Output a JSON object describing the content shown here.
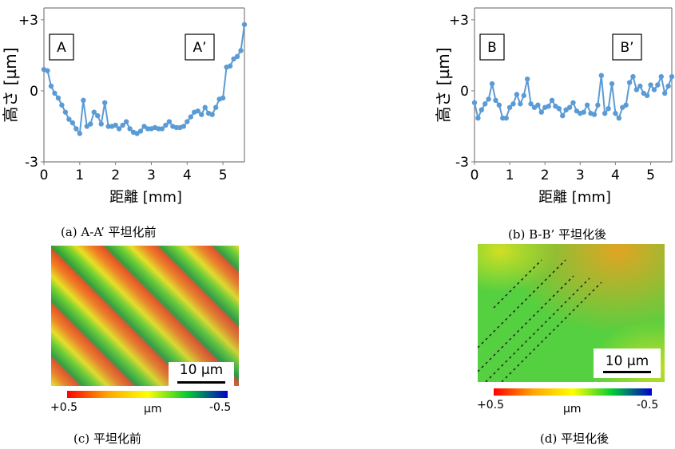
{
  "chart_data": [
    {
      "type": "line",
      "panel": "a",
      "caption": "(a) A-A’ 平坦化前",
      "xlabel": "距離 [mm]",
      "ylabel": "高さ [µm]",
      "xlim": [
        0,
        5.6
      ],
      "ylim": [
        -3,
        3.5
      ],
      "xticks": [
        "0",
        "1",
        "2",
        "3",
        "4",
        "5"
      ],
      "yticks": [
        "+3",
        "0",
        "-3"
      ],
      "markers": [
        "A",
        "A’"
      ],
      "grid": false,
      "color": "#5b9bd5",
      "x": [
        0,
        0.1,
        0.2,
        0.3,
        0.4,
        0.5,
        0.6,
        0.7,
        0.8,
        0.9,
        1.0,
        1.1,
        1.2,
        1.3,
        1.4,
        1.5,
        1.6,
        1.7,
        1.8,
        1.9,
        2.0,
        2.1,
        2.2,
        2.3,
        2.4,
        2.5,
        2.6,
        2.7,
        2.8,
        2.9,
        3.0,
        3.1,
        3.2,
        3.3,
        3.4,
        3.5,
        3.6,
        3.7,
        3.8,
        3.9,
        4.0,
        4.1,
        4.2,
        4.3,
        4.4,
        4.5,
        4.6,
        4.7,
        4.8,
        4.9,
        5.0,
        5.1,
        5.2,
        5.3,
        5.4,
        5.5,
        5.6
      ],
      "y": [
        0.9,
        0.85,
        0.2,
        -0.1,
        -0.3,
        -0.6,
        -0.9,
        -1.2,
        -1.35,
        -1.6,
        -1.8,
        -0.4,
        -1.5,
        -1.4,
        -0.9,
        -1.05,
        -1.4,
        -0.5,
        -1.5,
        -1.5,
        -1.45,
        -1.6,
        -1.45,
        -1.3,
        -1.6,
        -1.75,
        -1.8,
        -1.7,
        -1.5,
        -1.6,
        -1.6,
        -1.55,
        -1.6,
        -1.6,
        -1.45,
        -1.3,
        -1.5,
        -1.55,
        -1.55,
        -1.5,
        -1.3,
        -1.1,
        -0.9,
        -0.85,
        -1.0,
        -0.7,
        -0.95,
        -1.0,
        -0.7,
        -0.35,
        -0.3,
        1.0,
        1.05,
        1.35,
        1.45,
        1.7,
        2.8
      ]
    },
    {
      "type": "line",
      "panel": "b",
      "caption": "(b) B-B’ 平坦化後",
      "xlabel": "距離 [mm]",
      "ylabel": "高さ [µm]",
      "xlim": [
        0,
        5.6
      ],
      "ylim": [
        -3,
        3.5
      ],
      "xticks": [
        "0",
        "1",
        "2",
        "3",
        "4",
        "5"
      ],
      "yticks": [
        "+3",
        "0",
        "-3"
      ],
      "markers": [
        "B",
        "B’"
      ],
      "grid": false,
      "color": "#5b9bd5",
      "x": [
        0,
        0.1,
        0.2,
        0.3,
        0.4,
        0.5,
        0.6,
        0.7,
        0.8,
        0.9,
        1.0,
        1.1,
        1.2,
        1.3,
        1.4,
        1.5,
        1.6,
        1.7,
        1.8,
        1.9,
        2.0,
        2.1,
        2.2,
        2.3,
        2.4,
        2.5,
        2.6,
        2.7,
        2.8,
        2.9,
        3.0,
        3.1,
        3.2,
        3.3,
        3.4,
        3.5,
        3.6,
        3.7,
        3.8,
        3.9,
        4.0,
        4.1,
        4.2,
        4.3,
        4.4,
        4.5,
        4.6,
        4.7,
        4.8,
        4.9,
        5.0,
        5.1,
        5.2,
        5.3,
        5.4,
        5.5,
        5.6
      ],
      "y": [
        -0.5,
        -1.15,
        -0.8,
        -0.55,
        -0.35,
        0.3,
        -0.4,
        -0.6,
        -1.15,
        -1.15,
        -0.7,
        -0.55,
        -0.15,
        -0.55,
        -0.2,
        0.5,
        -0.55,
        -0.7,
        -0.6,
        -0.9,
        -0.7,
        -0.65,
        -0.4,
        -0.65,
        -0.75,
        -1.05,
        -0.8,
        -0.7,
        -0.5,
        -0.85,
        -0.95,
        -0.9,
        -0.6,
        -0.95,
        -1.0,
        -0.6,
        0.65,
        -0.95,
        -0.75,
        0.3,
        -0.95,
        -1.15,
        -0.7,
        -0.6,
        0.35,
        0.6,
        0.05,
        0.2,
        -0.1,
        -0.2,
        0.25,
        0.05,
        0.25,
        0.6,
        -0.1,
        0.2,
        0.6
      ]
    }
  ],
  "maps": {
    "c": {
      "caption": "(c) 平坦化前",
      "scale_label": "10 µm",
      "cbar_left": "+0.5",
      "cbar_mid": "µm",
      "cbar_right": "-0.5"
    },
    "d": {
      "caption": "(d) 平坦化後",
      "scale_label": "10 µm",
      "cbar_left": "+0.5",
      "cbar_mid": "µm",
      "cbar_right": "-0.5"
    }
  },
  "colors": {
    "line": "#5b9bd5",
    "cbar": [
      "#ff0000",
      "#ffa500",
      "#ffff00",
      "#00cc33",
      "#0000cc"
    ]
  }
}
